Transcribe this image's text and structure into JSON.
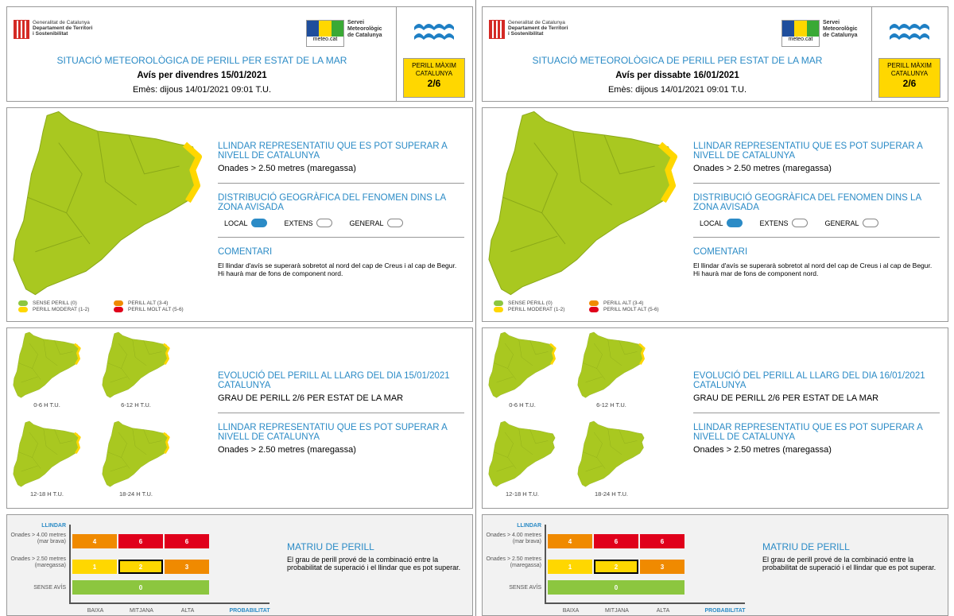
{
  "colors": {
    "accent": "#2b8bc6",
    "green": "#8cc63f",
    "map_green": "#a9c820",
    "yellow": "#ffd700",
    "orange": "#f08a00",
    "red": "#e0001b"
  },
  "common": {
    "org": [
      "Generalitat de Catalunya",
      "Departament de Territori",
      "i Sostenibilitat"
    ],
    "meteo_label": "meteo.cat",
    "meteo_org": [
      "Servei",
      "Meteorològic",
      "de Catalunya"
    ],
    "title": "SITUACIÓ METEOROLÒGICA DE PERILL PER ESTAT DE LA MAR",
    "max_label_1": "PERILL MÀXIM",
    "max_label_2": "CATALUNYA",
    "threshold_heading": "LLINDAR REPRESENTATIU QUE ES POT SUPERAR A NIVELL DE CATALUNYA",
    "threshold_value": "Onades > 2.50 metres (maregassa)",
    "distribution_heading": "DISTRIBUCIÓ GEOGRÀFICA DEL FENOMEN DINS LA ZONA AVISADA",
    "distribution_options": [
      {
        "label": "LOCAL",
        "selected": true
      },
      {
        "label": "EXTENS",
        "selected": false
      },
      {
        "label": "GENERAL",
        "selected": false
      }
    ],
    "comment_heading": "COMENTARI",
    "comment": "El llindar d'avís se superarà sobretot al nord del cap de Creus i al cap de Begur. Hi haurà mar de fons de component nord.",
    "legend": [
      "SENSE PERILL (0)",
      "PERILL ALT (3-4)",
      "PERILL MODERAT (1-2)",
      "PERILL MOLT ALT (5-6)"
    ],
    "evolution_grade": "GRAU DE PERILL 2/6 PER ESTAT DE LA MAR",
    "periods": [
      "0-6 H T.U.",
      "6-12 H T.U.",
      "12-18 H T.U.",
      "18-24 H T.U."
    ],
    "matrix": {
      "y_title": "LLINDAR",
      "rows": [
        "Onades > 4.00 metres (mar brava)",
        "Onades > 2.50 metres (maregassa)",
        "SENSE AVÍS"
      ],
      "cols": [
        "BAIXA",
        "MITJANA",
        "ALTA"
      ],
      "x_title": "PROBABILITAT",
      "values": [
        [
          "4",
          "6",
          "6"
        ],
        [
          "1",
          "2",
          "3"
        ],
        [
          "0"
        ]
      ],
      "selected": "2",
      "heading": "MATRIU DE PERILL",
      "text": "El grau de perill prové de la combinació entre la probabilitat de superació i el llindar que es pot superar."
    }
  },
  "panels": [
    {
      "avis": "Avís per divendres 15/01/2021",
      "emes": "Emès: dijous 14/01/2021 09:01 T.U.",
      "max": "2/6",
      "evolution_heading": "EVOLUCIÓ DEL PERILL AL LLARG DEL DIA 15/01/2021 CATALUNYA",
      "period_levels": [
        2,
        2,
        2,
        2
      ]
    },
    {
      "avis": "Avís per dissabte 16/01/2021",
      "emes": "Emès: dijous 14/01/2021 09:01 T.U.",
      "max": "2/6",
      "evolution_heading": "EVOLUCIÓ DEL PERILL AL LLARG DEL DIA 16/01/2021 CATALUNYA",
      "period_levels": [
        2,
        2,
        0,
        0
      ]
    }
  ]
}
